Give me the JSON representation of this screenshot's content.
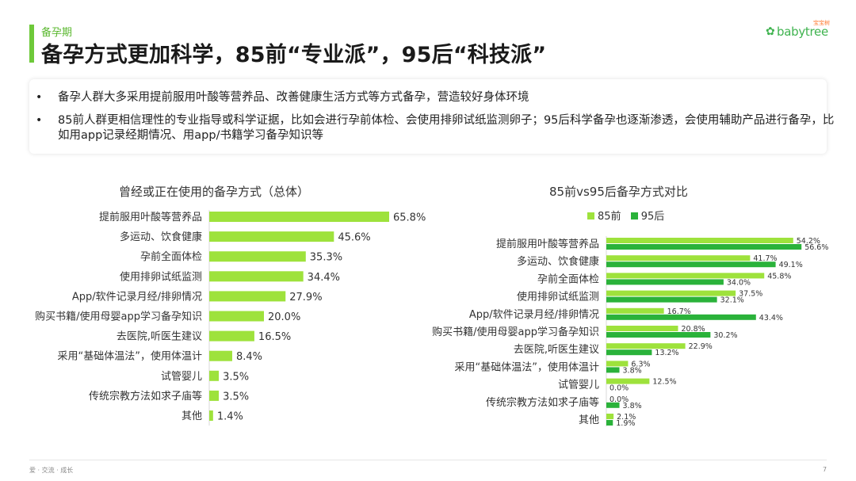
{
  "header": {
    "section_label": "备孕期",
    "title": "备孕方式更加科学，85前“专业派”，95后“科技派”",
    "logo_text": "babytree",
    "logo_cn": "宝宝树"
  },
  "summary": {
    "bullets": [
      "备孕人群大多采用提前服用叶酸等营养品、改善健康生活方式等方式备孕，营造较好身体环境",
      "85前人群更相信理性的专业指导或科学证据，比如会进行孕前体检、会使用排卵试纸监测卵子；95后科学备孕也逐渐渗透，会使用辅助产品进行备孕，比如用app记录经期情况、用app/书籍学习备孕知识等"
    ]
  },
  "colors": {
    "accent": "#6ec93a",
    "light_green": "#9ee23c",
    "dark_green": "#2ab23a"
  },
  "chart_data": [
    {
      "type": "bar",
      "orientation": "horizontal",
      "title": "曾经或正在使用的备孕方式（总体）",
      "categories": [
        "提前服用叶酸等营养品",
        "多运动、饮食健康",
        "孕前全面体检",
        "使用排卵试纸监测",
        "App/软件记录月经/排卵情况",
        "购买书籍/使用母婴app学习备孕知识",
        "去医院,听医生建议",
        "采用“基础体温法”，使用体温计",
        "试管婴儿",
        "传统宗教方法如求子庙等",
        "其他"
      ],
      "values": [
        65.8,
        45.6,
        35.3,
        34.4,
        27.9,
        20.0,
        16.5,
        8.4,
        3.5,
        3.5,
        1.4
      ],
      "labels": [
        "65.8%",
        "45.6%",
        "35.3%",
        "34.4%",
        "27.9%",
        "20.0%",
        "16.5%",
        "8.4%",
        "3.5%",
        "3.5%",
        "1.4%"
      ],
      "xlim": [
        0,
        100
      ],
      "grid": false
    },
    {
      "type": "bar",
      "orientation": "horizontal",
      "title": "85前vs95后备孕方式对比",
      "categories": [
        "提前服用叶酸等营养品",
        "多运动、饮食健康",
        "孕前全面体检",
        "使用排卵试纸监测",
        "App/软件记录月经/排卵情况",
        "购买书籍/使用母婴app学习备孕知识",
        "去医院,听医生建议",
        "采用“基础体温法”，使用体温计",
        "试管婴儿",
        "传统宗教方法如求子庙等",
        "其他"
      ],
      "series": [
        {
          "name": "85前",
          "values": [
            54.2,
            41.7,
            45.8,
            37.5,
            16.7,
            20.8,
            22.9,
            6.3,
            12.5,
            0.0,
            2.1
          ],
          "labels": [
            "54.2%",
            "41.7%",
            "45.8%",
            "37.5%",
            "16.7%",
            "20.8%",
            "22.9%",
            "6.3%",
            "12.5%",
            "0.0%",
            "2.1%"
          ]
        },
        {
          "name": "95后",
          "values": [
            56.6,
            49.1,
            34.0,
            32.1,
            43.4,
            30.2,
            13.2,
            3.8,
            0.0,
            3.8,
            1.9
          ],
          "labels": [
            "56.6%",
            "49.1%",
            "34.0%",
            "32.1%",
            "43.4%",
            "30.2%",
            "13.2%",
            "3.8%",
            "0.0%",
            "3.8%",
            "1.9%"
          ]
        }
      ],
      "xlim": [
        0,
        100
      ],
      "legend": "top-left",
      "grid": false
    }
  ],
  "footer": {
    "tagline": "爱 · 交流 · 成长",
    "page_number": "7"
  }
}
